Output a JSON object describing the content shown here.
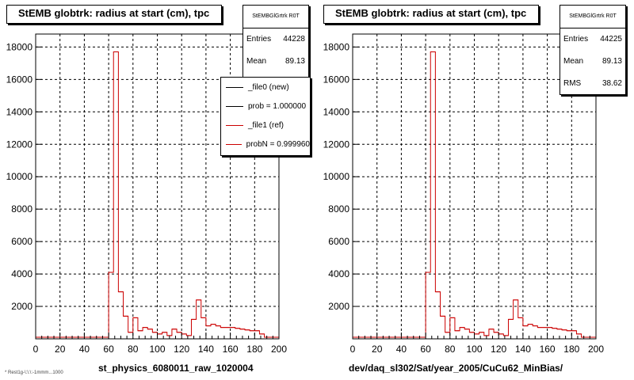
{
  "chart_data": [
    {
      "type": "bar",
      "title": "StEMB globtrk: radius at start (cm), tpc",
      "xlabel": "st_physics_6080011_raw_1020004",
      "ylabel": "",
      "xlim": [
        0,
        200
      ],
      "ylim": [
        0,
        18800
      ],
      "x_ticks": [
        "0",
        "20",
        "40",
        "60",
        "80",
        "100",
        "120",
        "140",
        "160",
        "180",
        "200"
      ],
      "y_ticks": [
        "2000",
        "4000",
        "6000",
        "8000",
        "10000",
        "12000",
        "14000",
        "16000",
        "18000"
      ],
      "grid": true,
      "stats": {
        "name": "StEMBGlGrtrk R0T",
        "entries_label": "Entries",
        "entries": "44228",
        "mean_label": "Mean",
        "mean": "89.13"
      },
      "legend": {
        "placement": "top-right",
        "entries": [
          {
            "label": "_file0 (new)",
            "color": "#000000"
          },
          {
            "label": "prob = 1.000000",
            "color": "#000000"
          },
          {
            "label": "_file1 (ref)",
            "color": "#cc0000"
          },
          {
            "label": "probN = 0.999960",
            "color": "#cc0000"
          }
        ]
      },
      "bin_width": 4,
      "series": [
        {
          "color": "#cc0000",
          "bins_start": 0,
          "values": [
            100,
            100,
            100,
            100,
            100,
            100,
            100,
            100,
            100,
            100,
            100,
            100,
            100,
            100,
            100,
            100,
            100,
            100,
            100,
            100,
            100,
            100,
            100,
            100,
            100,
            100,
            100,
            100,
            100,
            100,
            100,
            100,
            100,
            100,
            100,
            100,
            100,
            100,
            100,
            100,
            100,
            100,
            100,
            100,
            100,
            100,
            100,
            100,
            100,
            100
          ]
        }
      ],
      "hist": [
        100,
        100,
        100,
        100,
        100,
        100,
        100,
        100,
        100,
        100,
        100,
        100,
        100,
        100,
        100,
        4100,
        17700,
        2900,
        1400,
        400,
        1300,
        500,
        700,
        600,
        400,
        300,
        400,
        200,
        600,
        400,
        300,
        200,
        1200,
        2400,
        1300,
        800,
        900,
        800,
        700,
        700,
        700,
        650,
        600,
        550,
        500,
        500,
        300,
        100,
        100,
        100
      ]
    },
    {
      "type": "bar",
      "title": "StEMB globtrk: radius at start (cm), tpc",
      "xlabel": "dev/daq_sl302/Sat/year_2005/CuCu62_MinBias/",
      "ylabel": "",
      "xlim": [
        0,
        200
      ],
      "ylim": [
        0,
        18800
      ],
      "x_ticks": [
        "0",
        "20",
        "40",
        "60",
        "80",
        "100",
        "120",
        "140",
        "160",
        "180",
        "200"
      ],
      "y_ticks": [
        "2000",
        "4000",
        "6000",
        "8000",
        "10000",
        "12000",
        "14000",
        "16000",
        "18000"
      ],
      "grid": true,
      "stats": {
        "name": "StEMBGlGrtrk R0T",
        "entries_label": "Entries",
        "entries": "44225",
        "mean_label": "Mean",
        "mean": "89.13",
        "rms_label": "RMS",
        "rms": "38.62"
      },
      "bin_width": 4,
      "hist": [
        100,
        100,
        100,
        100,
        100,
        100,
        100,
        100,
        100,
        100,
        100,
        100,
        100,
        100,
        100,
        4100,
        17700,
        2900,
        1400,
        400,
        1300,
        500,
        700,
        600,
        400,
        300,
        400,
        200,
        600,
        400,
        300,
        200,
        1200,
        2400,
        1300,
        800,
        900,
        800,
        700,
        700,
        700,
        650,
        600,
        550,
        500,
        500,
        300,
        100,
        100,
        100
      ]
    }
  ],
  "footnote": "* Rest1g-\\:\\:\\:-1mmm...1000"
}
